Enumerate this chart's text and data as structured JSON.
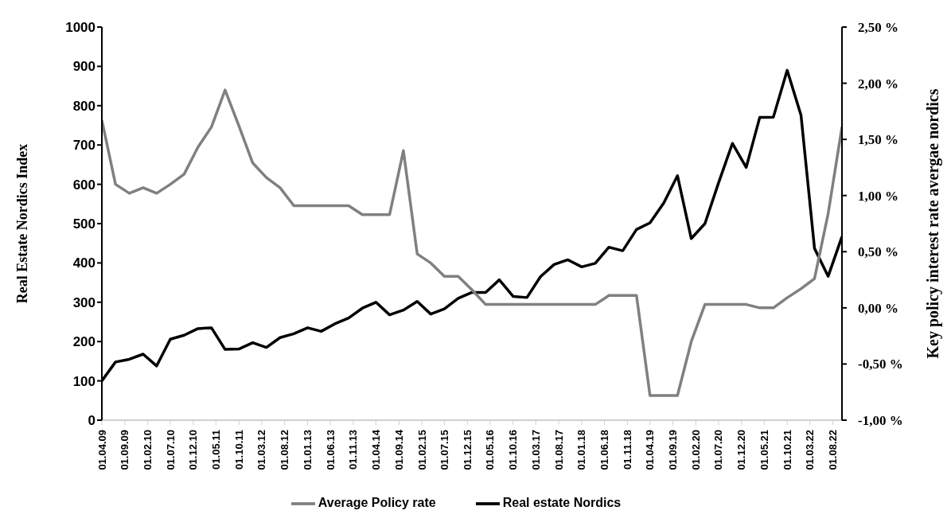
{
  "chart_data": {
    "type": "line",
    "ylabel": "Real Estate Nordics Index",
    "y2label": "Key policy interest rate avergae nordics",
    "x": [
      "2009-04-01",
      "2009-07-01",
      "2009-10-01",
      "2010-01-01",
      "2010-04-01",
      "2010-07-01",
      "2010-10-01",
      "2011-01-01",
      "2011-04-01",
      "2011-07-01",
      "2011-10-01",
      "2012-01-01",
      "2012-04-01",
      "2012-07-01",
      "2012-10-01",
      "2013-01-01",
      "2013-04-01",
      "2013-07-01",
      "2013-10-01",
      "2014-01-01",
      "2014-04-01",
      "2014-07-01",
      "2014-10-01",
      "2015-01-01",
      "2015-04-01",
      "2015-07-01",
      "2015-10-01",
      "2016-01-01",
      "2016-04-01",
      "2016-07-01",
      "2016-10-01",
      "2017-01-01",
      "2017-04-01",
      "2017-07-01",
      "2017-10-01",
      "2018-01-01",
      "2018-04-01",
      "2018-07-01",
      "2018-10-01",
      "2019-01-01",
      "2019-04-01",
      "2019-07-01",
      "2019-10-01",
      "2020-01-01",
      "2020-04-01",
      "2020-07-01",
      "2020-10-01",
      "2021-01-01",
      "2021-04-01",
      "2021-07-01",
      "2021-10-01",
      "2022-01-01",
      "2022-04-01",
      "2022-07-01",
      "2022-10-01"
    ],
    "series": [
      {
        "name": "Real estate Nordics",
        "color": "#000000",
        "values": [
          100,
          148,
          155,
          168,
          138,
          206,
          216,
          233,
          235,
          180,
          181,
          197,
          185,
          210,
          220,
          235,
          226,
          245,
          260,
          285,
          300,
          268,
          280,
          302,
          270,
          283,
          310,
          325,
          325,
          357,
          315,
          312,
          365,
          396,
          408,
          390,
          399,
          440,
          431,
          485,
          502,
          552,
          622,
          462,
          500,
          604,
          704,
          643,
          770,
          771,
          890,
          776,
          437,
          366,
          467
        ]
      },
      {
        "name": "Average Policy rate",
        "color": "#808080",
        "axis": "y2",
        "values": [
          1.67,
          1.1,
          1.02,
          1.07,
          1.02,
          1.1,
          1.19,
          1.43,
          1.61,
          1.94,
          1.62,
          1.29,
          1.16,
          1.07,
          0.91,
          0.91,
          0.91,
          0.91,
          0.91,
          0.83,
          0.83,
          0.83,
          1.4,
          0.48,
          0.4,
          0.28,
          0.28,
          0.16,
          0.03,
          0.03,
          0.03,
          0.03,
          0.03,
          0.03,
          0.03,
          0.03,
          0.03,
          0.11,
          0.11,
          0.11,
          -0.78,
          -0.78,
          -0.78,
          -0.3,
          0.03,
          0.03,
          0.03,
          0.03,
          0,
          0,
          0.09,
          0.17,
          0.26,
          0.84,
          1.61
        ]
      }
    ],
    "xlim": [
      "2009-04-01",
      "2022-10-01"
    ],
    "xticks": [
      {
        "value": "2009-04-01",
        "label": "01.04.09"
      },
      {
        "value": "2009-09-01",
        "label": "01.09.09"
      },
      {
        "value": "2010-02-01",
        "label": "01.02.10"
      },
      {
        "value": "2010-07-01",
        "label": "01.07.10"
      },
      {
        "value": "2010-12-01",
        "label": "01.12.10"
      },
      {
        "value": "2011-05-01",
        "label": "01.05.11"
      },
      {
        "value": "2011-10-01",
        "label": "01.10.11"
      },
      {
        "value": "2012-03-01",
        "label": "01.03.12"
      },
      {
        "value": "2012-08-01",
        "label": "01.08.12"
      },
      {
        "value": "2013-01-01",
        "label": "01.01.13"
      },
      {
        "value": "2013-06-01",
        "label": "01.06.13"
      },
      {
        "value": "2013-11-01",
        "label": "01.11.13"
      },
      {
        "value": "2014-04-01",
        "label": "01.04.14"
      },
      {
        "value": "2014-09-01",
        "label": "01.09.14"
      },
      {
        "value": "2015-02-01",
        "label": "01.02.15"
      },
      {
        "value": "2015-07-01",
        "label": "01.07.15"
      },
      {
        "value": "2015-12-01",
        "label": "01.12.15"
      },
      {
        "value": "2016-05-01",
        "label": "01.05.16"
      },
      {
        "value": "2016-10-01",
        "label": "01.10.16"
      },
      {
        "value": "2017-03-01",
        "label": "01.03.17"
      },
      {
        "value": "2017-08-01",
        "label": "01.08.17"
      },
      {
        "value": "2018-01-01",
        "label": "01.01.18"
      },
      {
        "value": "2018-06-01",
        "label": "01.06.18"
      },
      {
        "value": "2018-11-01",
        "label": "01.11.18"
      },
      {
        "value": "2019-04-01",
        "label": "01.04.19"
      },
      {
        "value": "2019-09-01",
        "label": "01.09.19"
      },
      {
        "value": "2020-02-01",
        "label": "01.02.20"
      },
      {
        "value": "2020-07-01",
        "label": "01.07.20"
      },
      {
        "value": "2020-12-01",
        "label": "01.12.20"
      },
      {
        "value": "2021-05-01",
        "label": "01.05.21"
      },
      {
        "value": "2021-10-01",
        "label": "01.10.21"
      },
      {
        "value": "2022-03-01",
        "label": "01.03.22"
      },
      {
        "value": "2022-08-01",
        "label": "01.08.22"
      }
    ],
    "ylim": [
      0,
      1000
    ],
    "yticks": [
      0,
      100,
      200,
      300,
      400,
      500,
      600,
      700,
      800,
      900,
      1000
    ],
    "y2lim": [
      -1,
      2.5
    ],
    "y2ticks": [
      {
        "value": -1,
        "label": "-1,00 %"
      },
      {
        "value": -0.5,
        "label": "-0,50 %"
      },
      {
        "value": 0,
        "label": "0,00 %"
      },
      {
        "value": 0.5,
        "label": "0,50 %"
      },
      {
        "value": 1,
        "label": "1,00 %"
      },
      {
        "value": 1.5,
        "label": "1,50 %"
      },
      {
        "value": 2,
        "label": "2,00 %"
      },
      {
        "value": 2.5,
        "label": "2,50 %"
      }
    ],
    "grid": false,
    "legend": "bottom",
    "marker": "none",
    "line_style": "solid"
  }
}
